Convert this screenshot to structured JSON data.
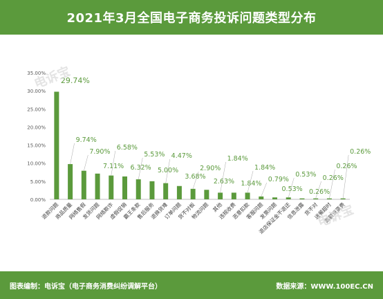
{
  "header": {
    "title": "2021年3月全国电子商务投诉问题类型分布"
  },
  "footer": {
    "left": "图表编制：电诉宝（电子商务消费纠纷调解平台）",
    "right": "数据来源：WWW.100EC.CN"
  },
  "watermark": {
    "text": "电诉宝"
  },
  "colors": {
    "bar": "#5b9a3c",
    "label": "#5b9a3c",
    "header_bg": "#5b9a3c"
  },
  "chart_data": {
    "type": "bar",
    "title": "",
    "xlabel": "",
    "ylabel": "",
    "ylim": [
      0,
      35
    ],
    "yticks": [
      "0.00%",
      "5.00%",
      "10.00%",
      "15.00%",
      "20.00%",
      "25.00%",
      "30.00%",
      "35.00%"
    ],
    "categories": [
      "退款问题",
      "商品质量",
      "网络售假",
      "发货问题",
      "网络欺诈",
      "虚假促销",
      "霸王条款",
      "售后服务",
      "退换货难",
      "订单问题",
      "货不对板",
      "物流问题",
      "其他",
      "违规收费",
      "恶意扣款",
      "客服问题",
      "发票问题",
      "退店保证金不退还",
      "信息泄露",
      "货不对",
      "送餐超时",
      "高额退票费"
    ],
    "values": [
      29.74,
      9.74,
      7.9,
      7.11,
      6.58,
      6.32,
      5.53,
      5.0,
      4.47,
      3.68,
      2.9,
      2.63,
      1.84,
      1.84,
      1.84,
      0.79,
      0.53,
      0.53,
      0.26,
      0.26,
      0.26,
      0.26
    ],
    "data_labels": [
      "29.74%",
      "9.74%",
      "7.90%",
      "7.11%",
      "6.58%",
      "6.32%",
      "5.53%",
      "5.00%",
      "4.47%",
      "3.68%",
      "2.90%",
      "2.63%",
      "1.84%",
      "1.84%",
      "1.84%",
      "0.79%",
      "0.53%",
      "0.53%",
      "0.26%",
      "0.26%",
      "0.26%",
      "0.26%"
    ],
    "grid": false,
    "legend": "none"
  }
}
